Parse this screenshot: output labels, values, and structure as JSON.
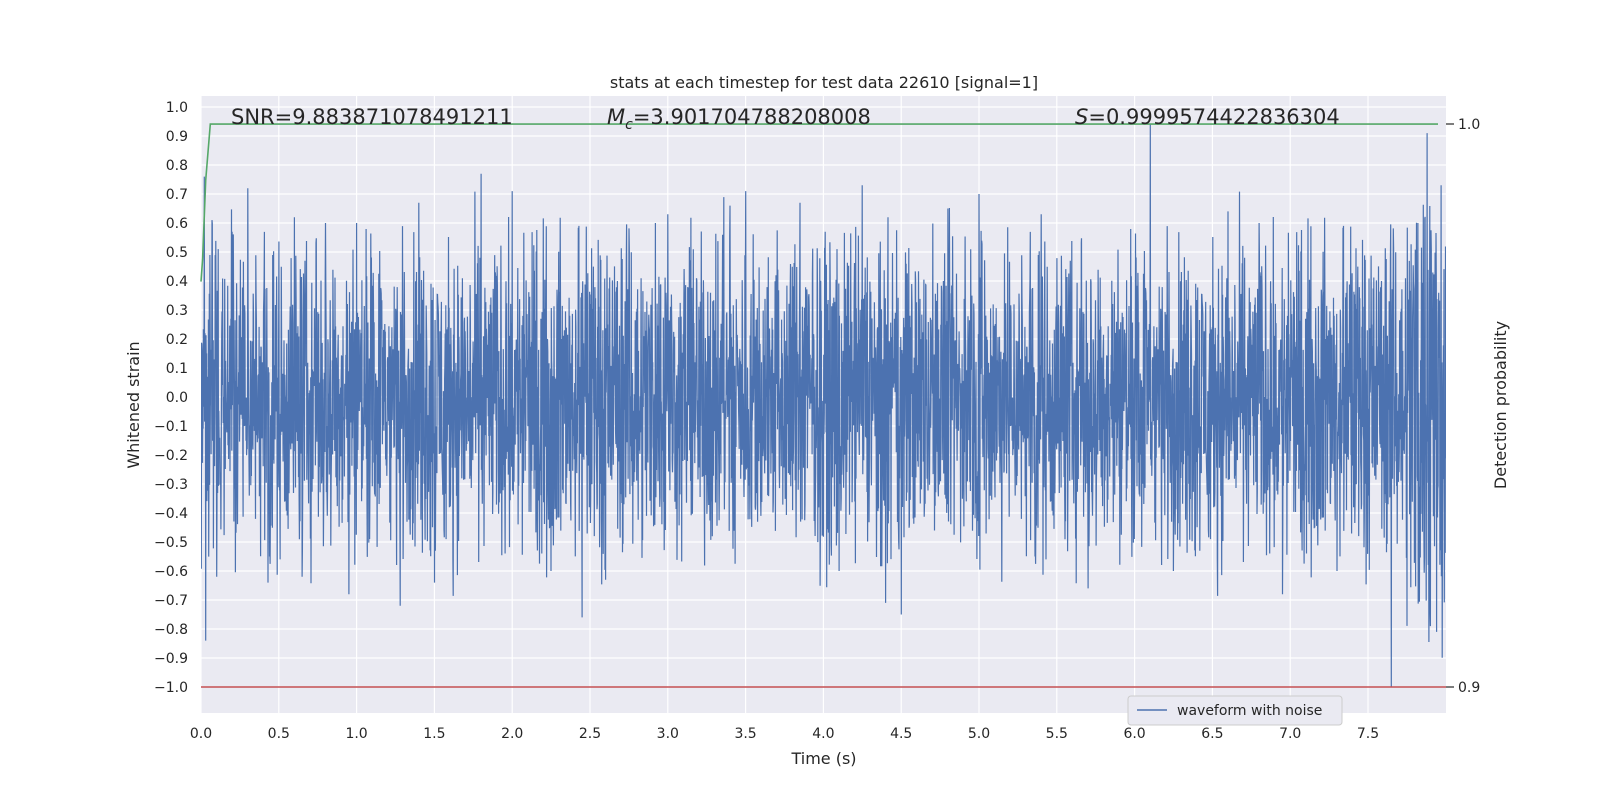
{
  "chart_data": {
    "type": "line",
    "title": "stats at each timestep for test data 22610 [signal=1]",
    "xlabel": "Time (s)",
    "ylabel": "Whitened strain",
    "y2label": "Detection probability",
    "xlim": [
      0.0,
      8.0
    ],
    "ylim": [
      -1.08,
      1.04
    ],
    "y2lim": [
      0.9,
      1.0
    ],
    "xticks": [
      "0.0",
      "0.5",
      "1.0",
      "1.5",
      "2.0",
      "2.5",
      "3.0",
      "3.5",
      "4.0",
      "4.5",
      "5.0",
      "5.5",
      "6.0",
      "6.5",
      "7.0",
      "7.5"
    ],
    "yticks": [
      "1.0",
      "0.9",
      "0.8",
      "0.7",
      "0.6",
      "0.5",
      "0.4",
      "0.3",
      "0.2",
      "0.1",
      "0.0",
      "−0.1",
      "−0.2",
      "−0.3",
      "−0.4",
      "−0.5",
      "−0.6",
      "−0.7",
      "−0.8",
      "−0.9",
      "−1.0"
    ],
    "y2ticks": [
      "1.0",
      "0.9"
    ],
    "grid": true,
    "legend": {
      "placement": "lower-right",
      "entries": [
        "waveform with noise"
      ]
    },
    "annotations": {
      "snr": "SNR=9.883871078491211",
      "mc_symbol": "M",
      "mc_sub": "c",
      "mc_value": "=3.901704788208008",
      "s_symbol": "S",
      "s_value": "=0.9999574422836304"
    },
    "series": [
      {
        "name": "waveform with noise",
        "color": "#4c72b0",
        "axis": "left",
        "duration": 8.0,
        "amplitude_band": [
          -0.42,
          0.42
        ],
        "peaks": [
          {
            "x": 0.02,
            "y": 0.76
          },
          {
            "x": 0.03,
            "y": -0.84
          },
          {
            "x": 0.07,
            "y": 0.61
          },
          {
            "x": 0.1,
            "y": -0.62
          },
          {
            "x": 0.2,
            "y": 0.57
          },
          {
            "x": 0.3,
            "y": 0.72
          },
          {
            "x": 0.43,
            "y": -0.64
          },
          {
            "x": 0.6,
            "y": 0.62
          },
          {
            "x": 0.65,
            "y": -0.62
          },
          {
            "x": 0.8,
            "y": 0.6
          },
          {
            "x": 0.95,
            "y": -0.68
          },
          {
            "x": 1.0,
            "y": 0.6
          },
          {
            "x": 1.28,
            "y": -0.72
          },
          {
            "x": 1.4,
            "y": 0.67
          },
          {
            "x": 1.5,
            "y": -0.64
          },
          {
            "x": 1.8,
            "y": 0.77
          },
          {
            "x": 2.0,
            "y": 0.71
          },
          {
            "x": 2.25,
            "y": -0.6
          },
          {
            "x": 2.45,
            "y": -0.76
          },
          {
            "x": 2.6,
            "y": -0.63
          },
          {
            "x": 2.92,
            "y": 0.6
          },
          {
            "x": 3.0,
            "y": 0.63
          },
          {
            "x": 3.4,
            "y": 0.66
          },
          {
            "x": 3.5,
            "y": 0.71
          },
          {
            "x": 3.85,
            "y": 0.67
          },
          {
            "x": 4.1,
            "y": -0.6
          },
          {
            "x": 4.25,
            "y": 0.73
          },
          {
            "x": 4.4,
            "y": -0.71
          },
          {
            "x": 4.5,
            "y": -0.75
          },
          {
            "x": 4.8,
            "y": 0.65
          },
          {
            "x": 5.0,
            "y": 0.7
          },
          {
            "x": 5.4,
            "y": 0.63
          },
          {
            "x": 5.7,
            "y": -0.66
          },
          {
            "x": 6.1,
            "y": 0.94
          },
          {
            "x": 6.25,
            "y": -0.6
          },
          {
            "x": 6.6,
            "y": 0.64
          },
          {
            "x": 6.8,
            "y": 0.6
          },
          {
            "x": 6.95,
            "y": -0.68
          },
          {
            "x": 7.3,
            "y": -0.6
          },
          {
            "x": 7.65,
            "y": -1.0
          },
          {
            "x": 7.82,
            "y": 0.6
          },
          {
            "x": 7.88,
            "y": 0.91
          },
          {
            "x": 7.9,
            "y": -0.79
          },
          {
            "x": 7.94,
            "y": -0.81
          },
          {
            "x": 7.97,
            "y": 0.73
          }
        ]
      },
      {
        "name": "",
        "color": "#55a868",
        "axis": "right",
        "x": [
          0.0,
          0.01,
          0.03,
          0.06,
          7.95
        ],
        "y": [
          0.972,
          0.976,
          0.99,
          0.99999,
          0.99999
        ]
      },
      {
        "name": "",
        "color": "#c44e52",
        "axis": "left",
        "x": [
          0.0,
          8.0
        ],
        "y": [
          -1.0,
          -1.0
        ]
      }
    ]
  }
}
